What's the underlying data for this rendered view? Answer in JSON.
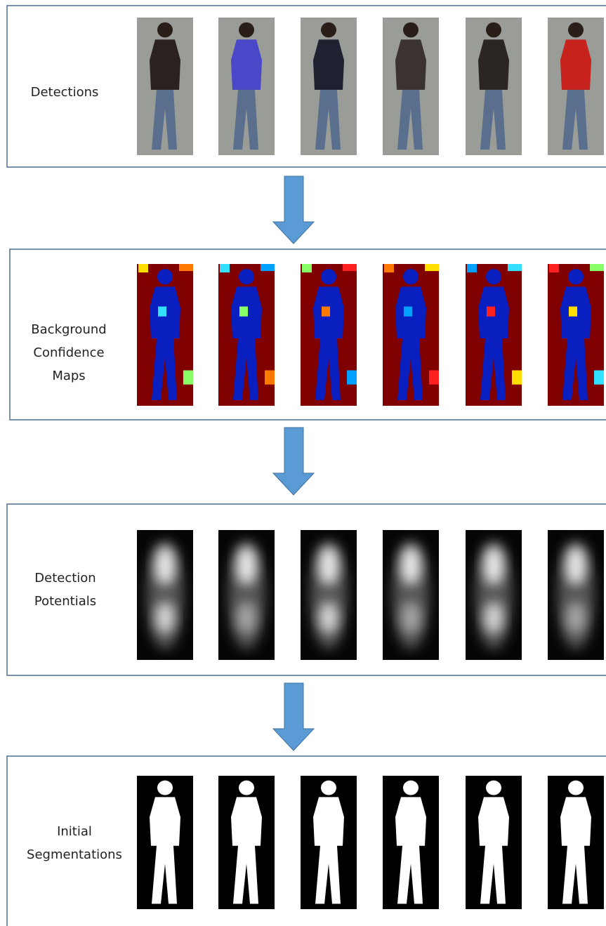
{
  "stages": [
    {
      "label": [
        "Detections"
      ]
    },
    {
      "label": [
        "Background",
        "Confidence",
        "Maps"
      ]
    },
    {
      "label": [
        "Detection",
        "Potentials"
      ]
    },
    {
      "label": [
        "Initial",
        "Segmentations"
      ]
    }
  ]
}
